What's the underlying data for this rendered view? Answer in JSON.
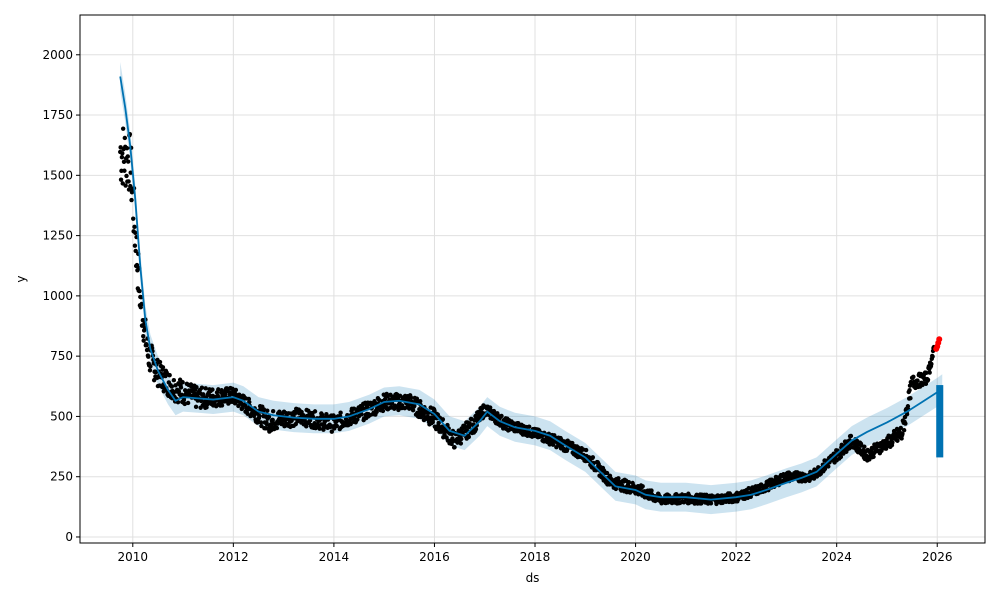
{
  "chart_data": {
    "type": "scatter",
    "title": "",
    "xlabel": "ds",
    "ylabel": "y",
    "xlim": [
      2008.95,
      2026.95
    ],
    "ylim": [
      -25,
      2165
    ],
    "x_ticks": [
      2010,
      2012,
      2014,
      2016,
      2018,
      2020,
      2022,
      2024,
      2026
    ],
    "y_ticks": [
      0,
      250,
      500,
      750,
      1000,
      1250,
      1500,
      1750,
      2000
    ],
    "grid": true,
    "colors": {
      "observed": "#000000",
      "forecast_line": "#0072B2",
      "interval_fill": "#0072B2",
      "recent_points": "#ff0000"
    },
    "series": [
      {
        "kind": "forecast",
        "points": [
          [
            2009.75,
            1910
          ],
          [
            2009.85,
            1780
          ],
          [
            2009.95,
            1620
          ],
          [
            2010.05,
            1400
          ],
          [
            2010.15,
            1120
          ],
          [
            2010.25,
            900
          ],
          [
            2010.35,
            780
          ],
          [
            2010.5,
            690
          ],
          [
            2010.7,
            610
          ],
          [
            2010.85,
            565
          ],
          [
            2011.0,
            580
          ],
          [
            2011.3,
            575
          ],
          [
            2011.6,
            570
          ],
          [
            2012.0,
            580
          ],
          [
            2012.2,
            565
          ],
          [
            2012.5,
            520
          ],
          [
            2012.8,
            505
          ],
          [
            2013.2,
            495
          ],
          [
            2013.6,
            490
          ],
          [
            2014.0,
            490
          ],
          [
            2014.3,
            500
          ],
          [
            2014.7,
            530
          ],
          [
            2015.0,
            560
          ],
          [
            2015.3,
            565
          ],
          [
            2015.7,
            550
          ],
          [
            2016.0,
            510
          ],
          [
            2016.3,
            440
          ],
          [
            2016.6,
            420
          ],
          [
            2016.9,
            480
          ],
          [
            2017.05,
            520
          ],
          [
            2017.3,
            480
          ],
          [
            2017.6,
            455
          ],
          [
            2018.0,
            440
          ],
          [
            2018.3,
            420
          ],
          [
            2018.6,
            380
          ],
          [
            2019.0,
            330
          ],
          [
            2019.3,
            270
          ],
          [
            2019.6,
            210
          ],
          [
            2020.0,
            195
          ],
          [
            2020.2,
            175
          ],
          [
            2020.5,
            165
          ],
          [
            2021.0,
            165
          ],
          [
            2021.5,
            155
          ],
          [
            2022.0,
            165
          ],
          [
            2022.3,
            175
          ],
          [
            2022.6,
            195
          ],
          [
            2023.0,
            225
          ],
          [
            2023.3,
            245
          ],
          [
            2023.6,
            270
          ],
          [
            2024.0,
            345
          ],
          [
            2024.3,
            400
          ],
          [
            2024.6,
            435
          ],
          [
            2025.0,
            475
          ],
          [
            2025.4,
            520
          ],
          [
            2025.7,
            560
          ],
          [
            2026.0,
            600
          ],
          [
            2026.1,
            615
          ]
        ],
        "band_width": 60
      },
      {
        "kind": "observed",
        "segments": [
          [
            2009.75,
            1600,
            300
          ],
          [
            2009.95,
            1550,
            250
          ],
          [
            2010.05,
            1250,
            250
          ],
          [
            2010.15,
            980,
            150
          ],
          [
            2010.3,
            760,
            150
          ],
          [
            2010.5,
            680,
            110
          ],
          [
            2010.8,
            620,
            110
          ],
          [
            2011.3,
            575,
            90
          ],
          [
            2012.0,
            585,
            70
          ],
          [
            2012.3,
            540,
            70
          ],
          [
            2012.7,
            480,
            90
          ],
          [
            2013.3,
            500,
            70
          ],
          [
            2014.0,
            470,
            70
          ],
          [
            2014.6,
            520,
            70
          ],
          [
            2015.0,
            560,
            70
          ],
          [
            2015.5,
            560,
            70
          ],
          [
            2016.0,
            490,
            80
          ],
          [
            2016.4,
            400,
            70
          ],
          [
            2016.8,
            470,
            70
          ],
          [
            2017.0,
            530,
            50
          ],
          [
            2017.4,
            470,
            50
          ],
          [
            2018.0,
            430,
            40
          ],
          [
            2018.5,
            390,
            50
          ],
          [
            2019.0,
            340,
            50
          ],
          [
            2019.5,
            230,
            50
          ],
          [
            2020.0,
            200,
            50
          ],
          [
            2020.5,
            155,
            40
          ],
          [
            2021.0,
            160,
            40
          ],
          [
            2021.5,
            155,
            40
          ],
          [
            2022.0,
            165,
            40
          ],
          [
            2022.5,
            200,
            40
          ],
          [
            2023.0,
            250,
            40
          ],
          [
            2023.5,
            250,
            40
          ],
          [
            2024.0,
            340,
            50
          ],
          [
            2024.3,
            400,
            50
          ],
          [
            2024.6,
            340,
            50
          ],
          [
            2025.0,
            390,
            50
          ],
          [
            2025.3,
            430,
            80
          ],
          [
            2025.5,
            640,
            60
          ],
          [
            2025.8,
            660,
            50
          ],
          [
            2025.95,
            790,
            30
          ]
        ]
      },
      {
        "kind": "recent",
        "points": [
          [
            2025.98,
            780
          ],
          [
            2026.0,
            790
          ],
          [
            2026.02,
            805
          ],
          [
            2026.04,
            820
          ]
        ]
      },
      {
        "kind": "forecast_tail",
        "x": [
          2025.98,
          2026.12
        ],
        "y_low": 330,
        "y_high": 630
      }
    ]
  }
}
